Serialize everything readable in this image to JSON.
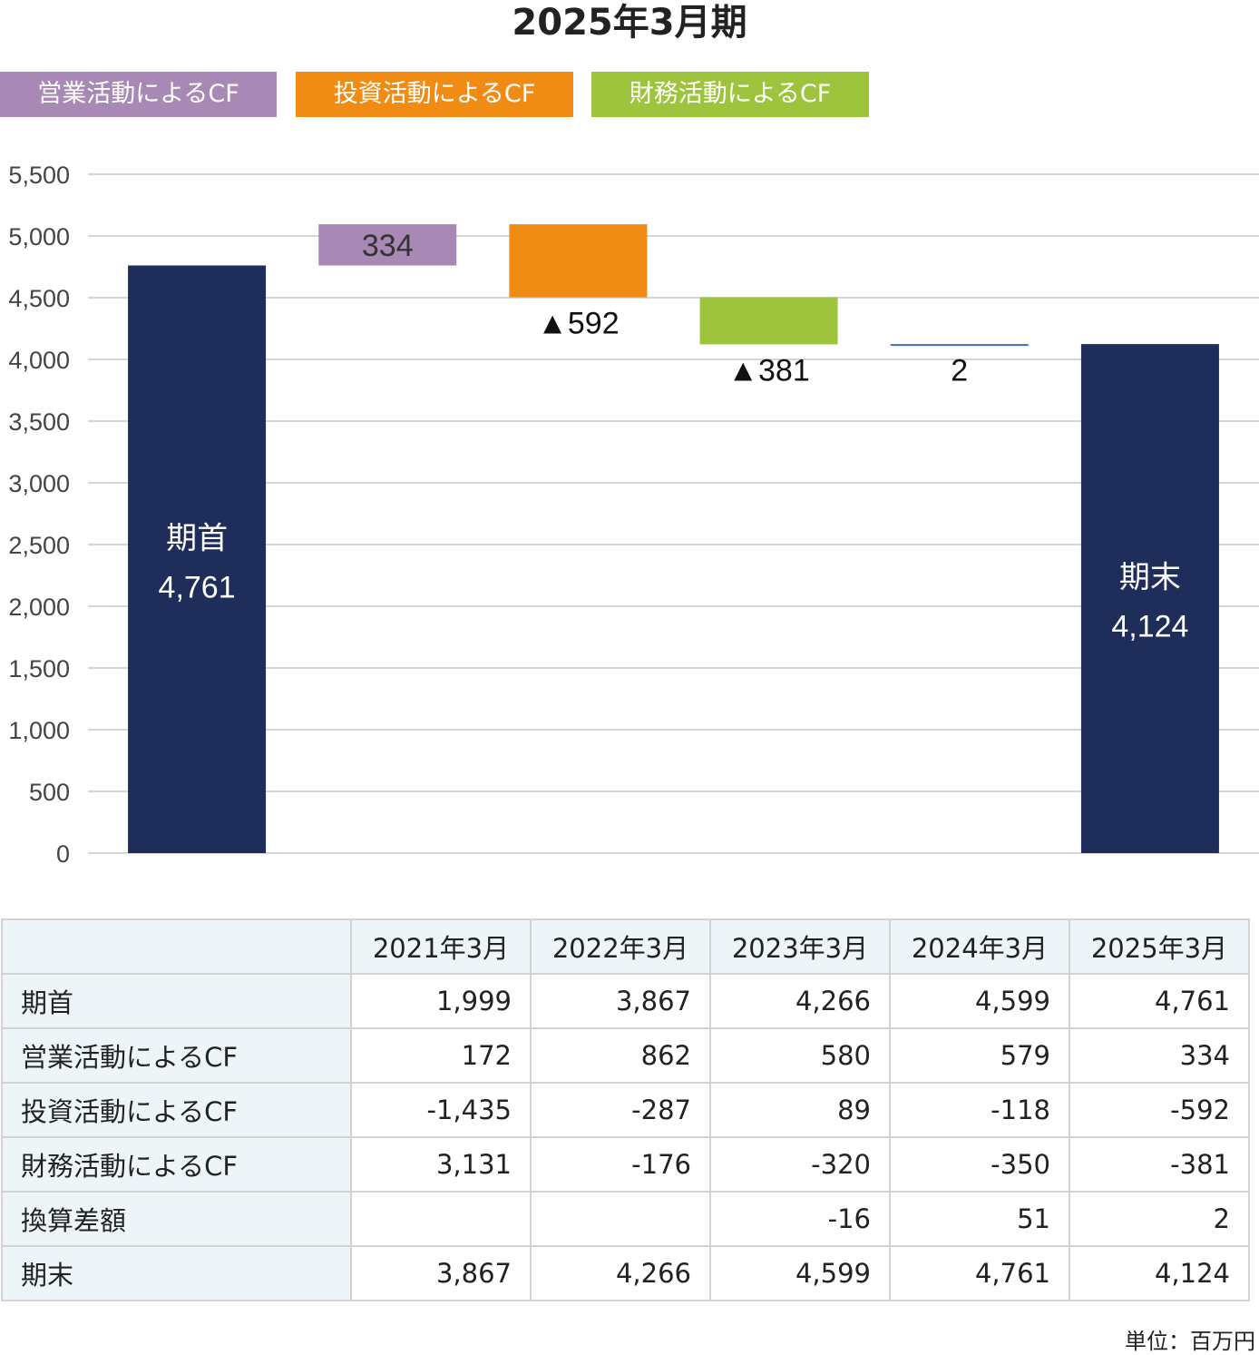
{
  "title": "2025年3月期",
  "legend": [
    {
      "label": "営業活動によるCF",
      "color": "#a888b5"
    },
    {
      "label": "投資活動によるCF",
      "color": "#f08c14"
    },
    {
      "label": "財務活動によるCF",
      "color": "#9dc43c"
    }
  ],
  "chart_data": {
    "type": "bar",
    "subtype": "waterfall",
    "ylim": [
      0,
      5500
    ],
    "yticks": [
      "0",
      "500",
      "1,000",
      "1,500",
      "2,000",
      "2,500",
      "3,000",
      "3,500",
      "4,000",
      "4,500",
      "5,000",
      "5,500"
    ],
    "grid": true,
    "steps": [
      {
        "kind": "total",
        "value": 4761,
        "name": "期首",
        "label": "4,761",
        "color": "#1e2d5a"
      },
      {
        "kind": "delta",
        "value": 334,
        "label": "334",
        "color": "#a888b5"
      },
      {
        "kind": "delta",
        "value": -592,
        "label": "▲592",
        "color": "#f08c14"
      },
      {
        "kind": "delta",
        "value": -381,
        "label": "▲381",
        "color": "#9dc43c"
      },
      {
        "kind": "delta",
        "value": 2,
        "label": "2",
        "color": "#3a6fb8"
      },
      {
        "kind": "total",
        "value": 4124,
        "name": "期末",
        "label": "4,124",
        "color": "#1e2d5a"
      }
    ]
  },
  "table": {
    "columns": [
      "2021年3月",
      "2022年3月",
      "2023年3月",
      "2024年3月",
      "2025年3月"
    ],
    "rows": [
      {
        "label": "期首",
        "values": [
          "1,999",
          "3,867",
          "4,266",
          "4,599",
          "4,761"
        ]
      },
      {
        "label": "営業活動によるCF",
        "values": [
          "172",
          "862",
          "580",
          "579",
          "334"
        ]
      },
      {
        "label": "投資活動によるCF",
        "values": [
          "-1,435",
          "-287",
          "89",
          "-118",
          "-592"
        ]
      },
      {
        "label": "財務活動によるCF",
        "values": [
          "3,131",
          "-176",
          "-320",
          "-350",
          "-381"
        ]
      },
      {
        "label": "換算差額",
        "values": [
          "",
          "",
          "-16",
          "51",
          "2"
        ]
      },
      {
        "label": "期末",
        "values": [
          "3,867",
          "4,266",
          "4,599",
          "4,761",
          "4,124"
        ]
      }
    ]
  },
  "unit": "単位：百万円"
}
